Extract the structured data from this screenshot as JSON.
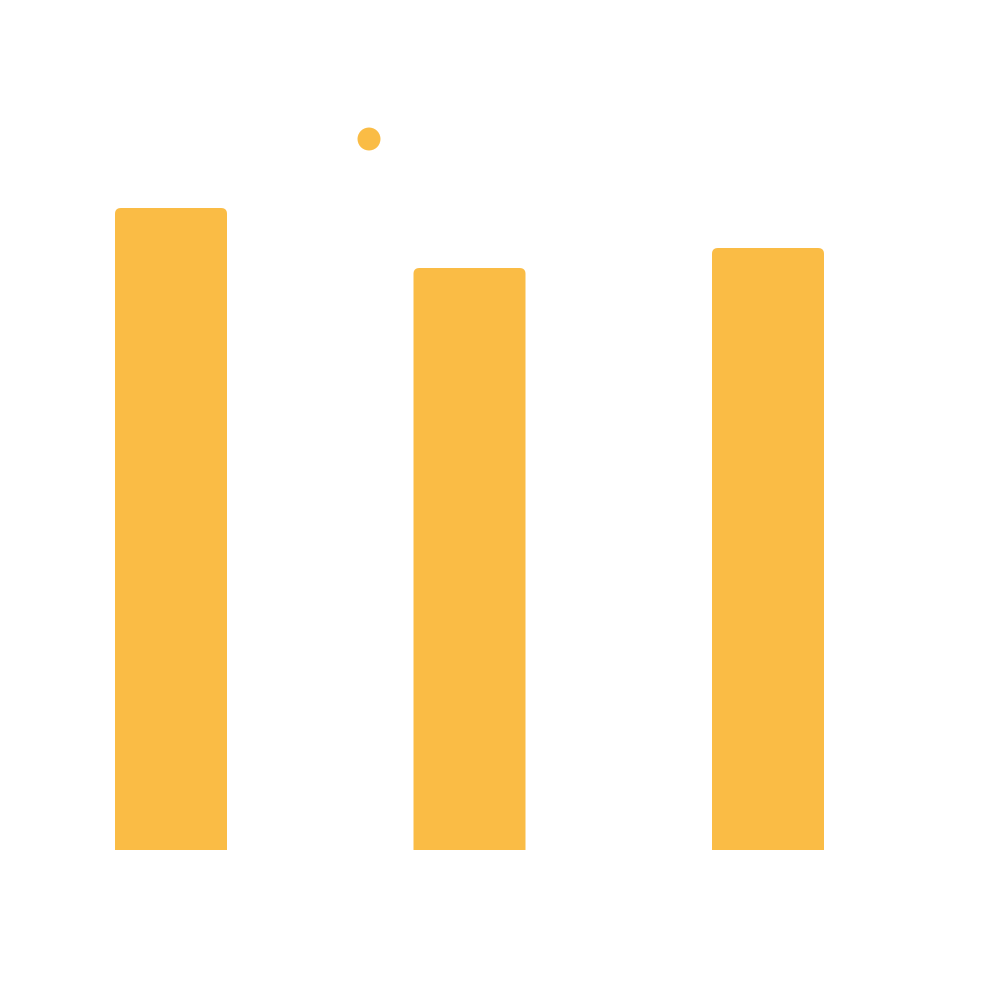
{
  "chart_data": {
    "type": "bar",
    "categories": [
      "",
      "",
      ""
    ],
    "values": [
      642,
      582,
      602
    ],
    "ylim": [
      0,
      710
    ],
    "grid": false,
    "legend": "top-center",
    "series": [
      {
        "color": "#fabc45",
        "values": [
          642,
          582,
          602
        ]
      }
    ],
    "colors": {
      "bar": "#fabc45",
      "background": "#ffffff"
    }
  }
}
